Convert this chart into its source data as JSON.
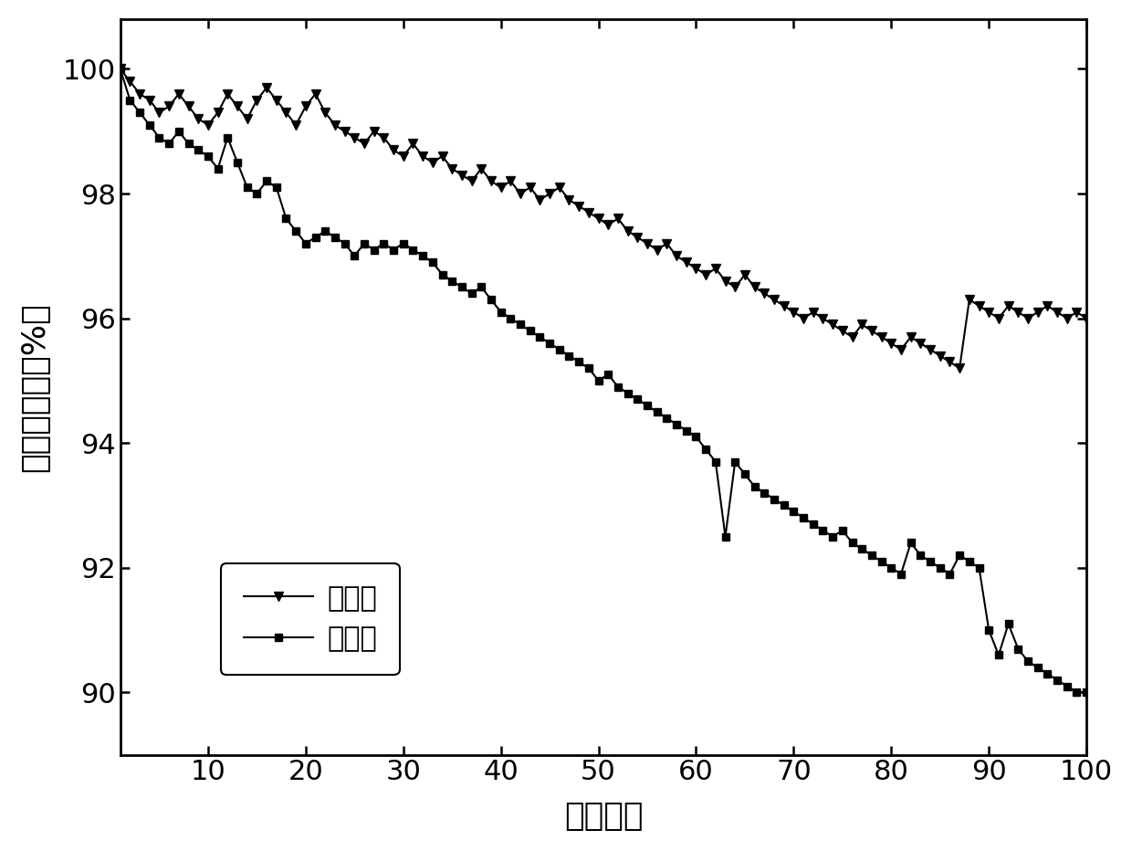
{
  "title": "",
  "xlabel": "循环次数",
  "ylabel": "容量保持率（%）",
  "xlim": [
    1,
    100
  ],
  "ylim": [
    89.0,
    100.8
  ],
  "yticks": [
    90,
    92,
    94,
    96,
    98,
    100
  ],
  "xticks": [
    10,
    20,
    30,
    40,
    50,
    60,
    70,
    80,
    90,
    100
  ],
  "line_color": "#000000",
  "bg_color": "#ffffff",
  "series1_label": "实施例",
  "series2_label": "对比例",
  "series1_x": [
    1,
    2,
    3,
    4,
    5,
    6,
    7,
    8,
    9,
    10,
    11,
    12,
    13,
    14,
    15,
    16,
    17,
    18,
    19,
    20,
    21,
    22,
    23,
    24,
    25,
    26,
    27,
    28,
    29,
    30,
    31,
    32,
    33,
    34,
    35,
    36,
    37,
    38,
    39,
    40,
    41,
    42,
    43,
    44,
    45,
    46,
    47,
    48,
    49,
    50,
    51,
    52,
    53,
    54,
    55,
    56,
    57,
    58,
    59,
    60,
    61,
    62,
    63,
    64,
    65,
    66,
    67,
    68,
    69,
    70,
    71,
    72,
    73,
    74,
    75,
    76,
    77,
    78,
    79,
    80,
    81,
    82,
    83,
    84,
    85,
    86,
    87,
    88,
    89,
    90,
    91,
    92,
    93,
    94,
    95,
    96,
    97,
    98,
    99,
    100
  ],
  "series1_y": [
    100.0,
    99.8,
    99.6,
    99.5,
    99.3,
    99.4,
    99.6,
    99.4,
    99.2,
    99.1,
    99.3,
    99.6,
    99.4,
    99.2,
    99.5,
    99.7,
    99.5,
    99.3,
    99.1,
    99.4,
    99.6,
    99.3,
    99.1,
    99.0,
    98.9,
    98.8,
    99.0,
    98.9,
    98.7,
    98.6,
    98.8,
    98.6,
    98.5,
    98.6,
    98.4,
    98.3,
    98.2,
    98.4,
    98.2,
    98.1,
    98.2,
    98.0,
    98.1,
    97.9,
    98.0,
    98.1,
    97.9,
    97.8,
    97.7,
    97.6,
    97.5,
    97.6,
    97.4,
    97.3,
    97.2,
    97.1,
    97.2,
    97.0,
    96.9,
    96.8,
    96.7,
    96.8,
    96.6,
    96.5,
    96.7,
    96.5,
    96.4,
    96.3,
    96.2,
    96.1,
    96.0,
    96.1,
    96.0,
    95.9,
    95.8,
    95.7,
    95.9,
    95.8,
    95.7,
    95.6,
    95.5,
    95.7,
    95.6,
    95.5,
    95.4,
    95.3,
    95.2,
    96.3,
    96.2,
    96.1,
    96.0,
    96.2,
    96.1,
    96.0,
    96.1,
    96.2,
    96.1,
    96.0,
    96.1,
    96.0
  ],
  "series2_x": [
    1,
    2,
    3,
    4,
    5,
    6,
    7,
    8,
    9,
    10,
    11,
    12,
    13,
    14,
    15,
    16,
    17,
    18,
    19,
    20,
    21,
    22,
    23,
    24,
    25,
    26,
    27,
    28,
    29,
    30,
    31,
    32,
    33,
    34,
    35,
    36,
    37,
    38,
    39,
    40,
    41,
    42,
    43,
    44,
    45,
    46,
    47,
    48,
    49,
    50,
    51,
    52,
    53,
    54,
    55,
    56,
    57,
    58,
    59,
    60,
    61,
    62,
    63,
    64,
    65,
    66,
    67,
    68,
    69,
    70,
    71,
    72,
    73,
    74,
    75,
    76,
    77,
    78,
    79,
    80,
    81,
    82,
    83,
    84,
    85,
    86,
    87,
    88,
    89,
    90,
    91,
    92,
    93,
    94,
    95,
    96,
    97,
    98,
    99,
    100
  ],
  "series2_y": [
    100.0,
    99.5,
    99.3,
    99.1,
    98.9,
    98.8,
    99.0,
    98.8,
    98.7,
    98.6,
    98.4,
    98.9,
    98.5,
    98.1,
    98.0,
    98.2,
    98.1,
    97.6,
    97.4,
    97.2,
    97.3,
    97.4,
    97.3,
    97.2,
    97.0,
    97.2,
    97.1,
    97.2,
    97.1,
    97.2,
    97.1,
    97.0,
    96.9,
    96.7,
    96.6,
    96.5,
    96.4,
    96.5,
    96.3,
    96.1,
    96.0,
    95.9,
    95.8,
    95.7,
    95.6,
    95.5,
    95.4,
    95.3,
    95.2,
    95.0,
    95.1,
    94.9,
    94.8,
    94.7,
    94.6,
    94.5,
    94.4,
    94.3,
    94.2,
    94.1,
    93.9,
    93.7,
    92.5,
    93.7,
    93.5,
    93.3,
    93.2,
    93.1,
    93.0,
    92.9,
    92.8,
    92.7,
    92.6,
    92.5,
    92.6,
    92.4,
    92.3,
    92.2,
    92.1,
    92.0,
    91.9,
    92.4,
    92.2,
    92.1,
    92.0,
    91.9,
    92.2,
    92.1,
    92.0,
    91.0,
    90.6,
    91.1,
    90.7,
    90.5,
    90.4,
    90.3,
    90.2,
    90.1,
    90.0,
    90.0
  ]
}
